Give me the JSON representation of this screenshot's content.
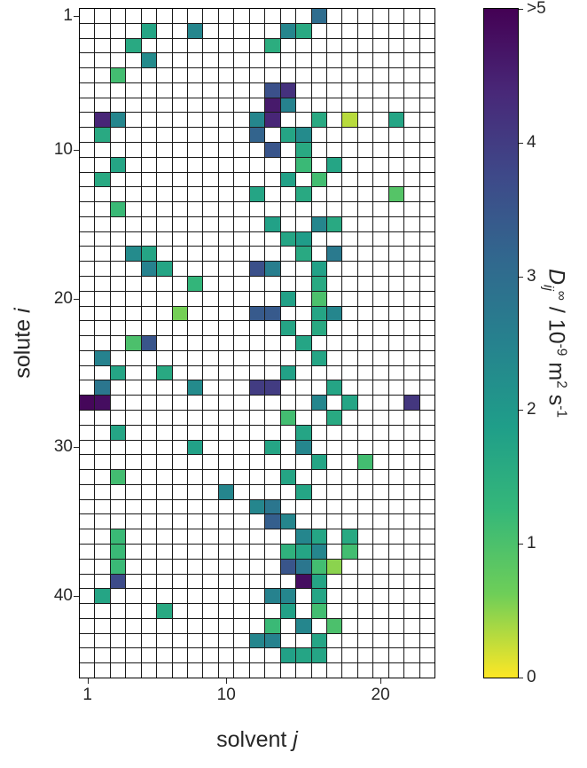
{
  "figure": {
    "background": "#ffffff",
    "axis_color": "#262626",
    "grid_line_color": "#1a1a1a"
  },
  "chart_data": {
    "type": "heatmap",
    "n_rows": 45,
    "n_cols": 23,
    "xlabel_parts": [
      {
        "t": "solvent ",
        "c": ""
      },
      {
        "t": "j",
        "c": "it"
      }
    ],
    "ylabel_parts": [
      {
        "t": "solute ",
        "c": ""
      },
      {
        "t": "i",
        "c": "it"
      }
    ],
    "x_ticks": [
      1,
      10,
      20
    ],
    "y_ticks": [
      1,
      10,
      20,
      30,
      40
    ],
    "empty_color": "#ffffff",
    "colormap": {
      "name": "viridis (high values dark)",
      "stops": [
        "#fde725",
        "#6ece58",
        "#35b779",
        "#1f9e89",
        "#26828e",
        "#31688e",
        "#3e4989",
        "#482878",
        "#440154"
      ]
    },
    "colorbar": {
      "vmin": 0,
      "vmax": 5,
      "ticks": [
        {
          "label": ">5",
          "value": 5
        },
        {
          "label": "4",
          "value": 4
        },
        {
          "label": "3",
          "value": 3
        },
        {
          "label": "2",
          "value": 2
        },
        {
          "label": "1",
          "value": 1
        },
        {
          "label": "0",
          "value": 0
        }
      ],
      "label_parts": [
        {
          "t": "D",
          "c": "it"
        },
        {
          "t": "ij",
          "c": "sub it"
        },
        {
          "t": "∞",
          "c": "sup"
        },
        {
          "t": " / 10",
          "c": ""
        },
        {
          "t": "-9",
          "c": "sup"
        },
        {
          "t": " m",
          "c": ""
        },
        {
          "t": "2",
          "c": "sup"
        },
        {
          "t": " s",
          "c": ""
        },
        {
          "t": "-1",
          "c": "sup"
        }
      ]
    },
    "cells": [
      [
        1,
        16,
        3.0
      ],
      [
        2,
        5,
        1.7
      ],
      [
        2,
        8,
        2.4
      ],
      [
        2,
        14,
        2.4
      ],
      [
        2,
        15,
        1.6
      ],
      [
        3,
        4,
        1.6
      ],
      [
        3,
        13,
        1.5
      ],
      [
        4,
        5,
        2.3
      ],
      [
        5,
        3,
        1.1
      ],
      [
        6,
        13,
        3.6
      ],
      [
        6,
        14,
        4.2
      ],
      [
        7,
        13,
        4.6
      ],
      [
        7,
        14,
        2.5
      ],
      [
        8,
        2,
        4.4
      ],
      [
        8,
        3,
        2.4
      ],
      [
        8,
        12,
        2.4
      ],
      [
        8,
        13,
        4.4
      ],
      [
        8,
        16,
        1.6
      ],
      [
        8,
        18,
        0.3
      ],
      [
        8,
        21,
        1.7
      ],
      [
        9,
        2,
        1.6
      ],
      [
        9,
        12,
        3.2
      ],
      [
        9,
        14,
        1.7
      ],
      [
        9,
        15,
        2.3
      ],
      [
        10,
        13,
        3.5
      ],
      [
        10,
        15,
        1.6
      ],
      [
        11,
        3,
        1.7
      ],
      [
        11,
        15,
        1.2
      ],
      [
        11,
        17,
        1.7
      ],
      [
        12,
        2,
        1.6
      ],
      [
        12,
        14,
        1.8
      ],
      [
        12,
        16,
        1.1
      ],
      [
        13,
        12,
        1.7
      ],
      [
        13,
        15,
        1.6
      ],
      [
        13,
        21,
        0.9
      ],
      [
        14,
        3,
        1.2
      ],
      [
        15,
        13,
        1.8
      ],
      [
        15,
        16,
        2.4
      ],
      [
        15,
        17,
        1.6
      ],
      [
        16,
        14,
        1.7
      ],
      [
        16,
        15,
        1.9
      ],
      [
        17,
        4,
        2.3
      ],
      [
        17,
        5,
        1.7
      ],
      [
        17,
        15,
        1.6
      ],
      [
        17,
        17,
        2.7
      ],
      [
        18,
        5,
        2.5
      ],
      [
        18,
        6,
        1.7
      ],
      [
        18,
        12,
        3.6
      ],
      [
        18,
        13,
        2.6
      ],
      [
        18,
        16,
        1.8
      ],
      [
        19,
        8,
        1.3
      ],
      [
        19,
        16,
        1.6
      ],
      [
        20,
        14,
        1.8
      ],
      [
        20,
        16,
        1.0
      ],
      [
        21,
        7,
        0.6
      ],
      [
        21,
        12,
        3.4
      ],
      [
        21,
        13,
        3.4
      ],
      [
        21,
        16,
        1.7
      ],
      [
        21,
        17,
        2.4
      ],
      [
        22,
        14,
        1.7
      ],
      [
        22,
        16,
        1.6
      ],
      [
        23,
        4,
        1.0
      ],
      [
        23,
        5,
        3.5
      ],
      [
        23,
        15,
        1.7
      ],
      [
        24,
        2,
        2.5
      ],
      [
        24,
        16,
        1.7
      ],
      [
        25,
        3,
        1.7
      ],
      [
        25,
        6,
        1.6
      ],
      [
        25,
        14,
        1.8
      ],
      [
        26,
        2,
        2.8
      ],
      [
        26,
        8,
        2.3
      ],
      [
        26,
        12,
        4.0
      ],
      [
        26,
        13,
        4.0
      ],
      [
        26,
        17,
        1.7
      ],
      [
        27,
        1,
        4.9
      ],
      [
        27,
        2,
        4.8
      ],
      [
        27,
        16,
        2.4
      ],
      [
        27,
        18,
        1.7
      ],
      [
        27,
        22,
        4.1
      ],
      [
        28,
        14,
        1.1
      ],
      [
        28,
        17,
        1.6
      ],
      [
        29,
        3,
        1.7
      ],
      [
        29,
        15,
        1.7
      ],
      [
        30,
        8,
        1.8
      ],
      [
        30,
        13,
        1.7
      ],
      [
        30,
        15,
        2.4
      ],
      [
        31,
        16,
        1.7
      ],
      [
        31,
        19,
        1.1
      ],
      [
        32,
        3,
        1.1
      ],
      [
        32,
        14,
        1.7
      ],
      [
        33,
        10,
        2.4
      ],
      [
        33,
        15,
        1.7
      ],
      [
        34,
        12,
        2.4
      ],
      [
        34,
        13,
        2.8
      ],
      [
        35,
        13,
        3.3
      ],
      [
        35,
        14,
        2.4
      ],
      [
        36,
        3,
        1.2
      ],
      [
        36,
        15,
        2.4
      ],
      [
        36,
        16,
        1.7
      ],
      [
        36,
        18,
        1.6
      ],
      [
        37,
        3,
        1.2
      ],
      [
        37,
        14,
        1.4
      ],
      [
        37,
        15,
        1.7
      ],
      [
        37,
        16,
        2.4
      ],
      [
        37,
        18,
        1.1
      ],
      [
        38,
        3,
        1.2
      ],
      [
        38,
        14,
        3.5
      ],
      [
        38,
        15,
        2.8
      ],
      [
        38,
        16,
        1.1
      ],
      [
        38,
        17,
        0.5
      ],
      [
        39,
        3,
        3.7
      ],
      [
        39,
        15,
        4.8
      ],
      [
        39,
        16,
        1.7
      ],
      [
        40,
        2,
        1.7
      ],
      [
        40,
        13,
        2.5
      ],
      [
        40,
        14,
        2.4
      ],
      [
        40,
        16,
        1.7
      ],
      [
        41,
        6,
        1.6
      ],
      [
        41,
        14,
        1.8
      ],
      [
        41,
        16,
        1.1
      ],
      [
        42,
        13,
        1.2
      ],
      [
        42,
        15,
        2.4
      ],
      [
        42,
        17,
        1.0
      ],
      [
        43,
        12,
        2.4
      ],
      [
        43,
        13,
        2.5
      ],
      [
        43,
        16,
        1.7
      ],
      [
        44,
        14,
        1.8
      ],
      [
        44,
        15,
        1.7
      ],
      [
        44,
        16,
        1.7
      ]
    ]
  }
}
